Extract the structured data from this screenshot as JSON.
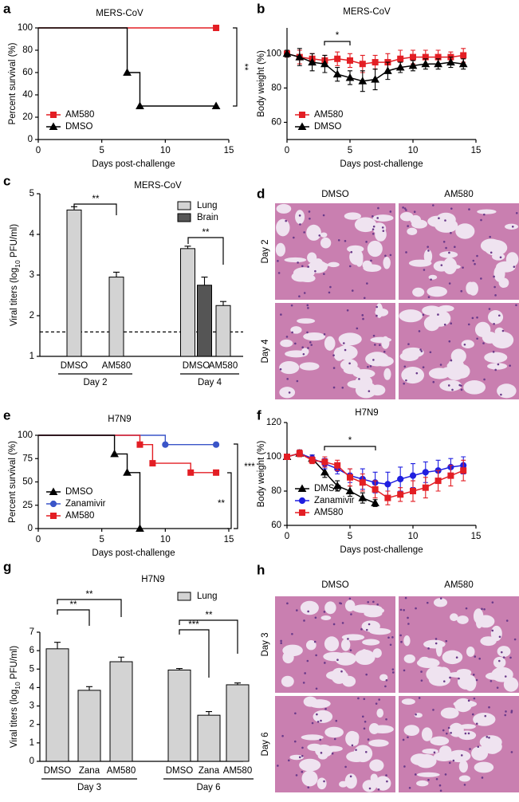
{
  "chart_data": [
    {
      "panel": "a",
      "type": "step",
      "title": "MERS-CoV",
      "xlabel": "Days post-challenge",
      "ylabel": "Percent survival (%)",
      "xlim": [
        0,
        15
      ],
      "ylim": [
        0,
        100
      ],
      "xticks": [
        0,
        5,
        10,
        15
      ],
      "yticks": [
        0,
        20,
        40,
        60,
        80,
        100
      ],
      "legend": "lower left",
      "series": [
        {
          "name": "AM580",
          "color": "#e31e24",
          "marker": "square",
          "x": [
            0,
            14
          ],
          "values": [
            100,
            100
          ]
        },
        {
          "name": "DMSO",
          "color": "#000000",
          "marker": "triangle",
          "x": [
            0,
            7,
            8,
            14
          ],
          "values": [
            100,
            60,
            30,
            30
          ]
        }
      ],
      "annotations": [
        "**"
      ]
    },
    {
      "panel": "b",
      "type": "line",
      "title": "MERS-CoV",
      "xlabel": "Days post-challenge",
      "ylabel": "Body weight (%)",
      "xlim": [
        0,
        15
      ],
      "ylim": [
        50,
        115
      ],
      "xticks": [
        0,
        5,
        10,
        15
      ],
      "yticks": [
        60,
        80,
        100
      ],
      "legend": "lower left",
      "x": [
        0,
        1,
        2,
        3,
        4,
        5,
        6,
        7,
        8,
        9,
        10,
        11,
        12,
        13,
        14
      ],
      "series": [
        {
          "name": "AM580",
          "color": "#e31e24",
          "marker": "square",
          "values": [
            100,
            98,
            97,
            96,
            97,
            96,
            94,
            95,
            95,
            97,
            98,
            98,
            98,
            98,
            99
          ],
          "errors": [
            2,
            4,
            3,
            3,
            4,
            4,
            5,
            4,
            5,
            5,
            4,
            4,
            4,
            3,
            4
          ]
        },
        {
          "name": "DMSO",
          "color": "#000000",
          "marker": "triangle",
          "values": [
            100,
            98,
            95,
            94,
            88,
            86,
            84,
            85,
            90,
            92,
            93,
            94,
            94,
            95,
            94
          ],
          "errors": [
            2,
            5,
            5,
            5,
            4,
            4,
            6,
            6,
            5,
            3,
            3,
            3,
            3,
            3,
            3
          ]
        }
      ],
      "annotations": [
        "*"
      ]
    },
    {
      "panel": "c",
      "type": "bar",
      "title": "MERS-CoV",
      "ylabel": [
        "Viral titers (log",
        "10",
        " PFU/ml)"
      ],
      "ylim": [
        1,
        5
      ],
      "yticks": [
        1,
        2,
        3,
        4,
        5
      ],
      "legend": "upper right",
      "reference_line": 1.6,
      "groups": [
        {
          "name": "Day 2",
          "categories": [
            "DMSO",
            "AM580"
          ]
        },
        {
          "name": "Day 4",
          "categories": [
            "DMSO",
            "AM580"
          ]
        }
      ],
      "series": [
        {
          "name": "Lung",
          "color": "#d3d3d3",
          "values": [
            4.6,
            2.95,
            3.65,
            2.25
          ],
          "errors": [
            0.08,
            0.12,
            0.06,
            0.1
          ]
        },
        {
          "name": "Brain",
          "color": "#555555",
          "values": [
            null,
            null,
            2.75,
            null
          ],
          "errors": [
            null,
            null,
            0.2,
            null
          ]
        }
      ],
      "annotations": [
        "**",
        "**"
      ]
    },
    {
      "panel": "e",
      "type": "step",
      "title": "H7N9",
      "xlabel": "Days post-challenge",
      "ylabel": "Percent survival (%)",
      "xlim": [
        0,
        15
      ],
      "ylim": [
        0,
        100
      ],
      "xticks": [
        0,
        5,
        10,
        15
      ],
      "yticks": [
        0,
        25,
        50,
        75,
        100
      ],
      "legend": "lower left",
      "series": [
        {
          "name": "DMSO",
          "color": "#000000",
          "marker": "triangle",
          "x": [
            0,
            6,
            7,
            8
          ],
          "values": [
            100,
            80,
            60,
            0
          ]
        },
        {
          "name": "Zanamivir",
          "color": "#3a55c8",
          "marker": "circle",
          "x": [
            0,
            10,
            14
          ],
          "values": [
            100,
            90,
            90
          ]
        },
        {
          "name": "AM580",
          "color": "#e31e24",
          "marker": "square",
          "x": [
            0,
            8,
            9,
            12,
            14
          ],
          "values": [
            100,
            90,
            70,
            60,
            60
          ]
        }
      ],
      "annotations": [
        "***",
        "**"
      ]
    },
    {
      "panel": "f",
      "type": "line",
      "title": "H7N9",
      "xlabel": "Days post-challenge",
      "ylabel": "Body weight (%)",
      "xlim": [
        0,
        15
      ],
      "ylim": [
        60,
        120
      ],
      "xticks": [
        0,
        5,
        10,
        15
      ],
      "yticks": [
        60,
        80,
        100,
        120
      ],
      "legend": "lower left",
      "x": [
        0,
        1,
        2,
        3,
        4,
        5,
        6,
        7,
        8,
        9,
        10,
        11,
        12,
        13,
        14
      ],
      "series": [
        {
          "name": "DMSO",
          "color": "#000000",
          "marker": "triangle",
          "values": [
            100,
            102,
            99,
            91,
            83,
            80,
            76,
            73,
            null,
            null,
            null,
            null,
            null,
            null,
            null
          ],
          "errors": [
            1,
            2,
            2,
            3,
            3,
            3,
            3,
            2,
            null,
            null,
            null,
            null,
            null,
            null,
            null
          ]
        },
        {
          "name": "Zanamivir",
          "color": "#1f1fe0",
          "marker": "circle",
          "values": [
            100,
            102,
            99,
            96,
            93,
            89,
            87,
            85,
            84,
            87,
            89,
            91,
            92,
            94,
            95
          ],
          "errors": [
            1,
            2,
            2,
            3,
            3,
            4,
            6,
            6,
            7,
            7,
            7,
            6,
            6,
            5,
            5
          ]
        },
        {
          "name": "AM580",
          "color": "#e31e24",
          "marker": "square",
          "values": [
            100,
            102,
            98,
            97,
            95,
            88,
            85,
            81,
            76,
            78,
            80,
            82,
            86,
            89,
            92
          ],
          "errors": [
            1,
            2,
            2,
            3,
            3,
            5,
            5,
            5,
            4,
            4,
            6,
            6,
            6,
            6,
            6
          ]
        }
      ],
      "annotations": [
        "*"
      ]
    },
    {
      "panel": "g",
      "type": "bar",
      "title": "H7N9",
      "ylabel": [
        "Viral titers (log",
        "10",
        " PFU/ml)"
      ],
      "ylim": [
        0,
        7
      ],
      "yticks": [
        0,
        1,
        2,
        3,
        4,
        5,
        6,
        7
      ],
      "legend": "upper right",
      "groups": [
        {
          "name": "Day 3",
          "categories": [
            "DMSO",
            "Zana",
            "AM580"
          ]
        },
        {
          "name": "Day 6",
          "categories": [
            "DMSO",
            "Zana",
            "AM580"
          ]
        }
      ],
      "series": [
        {
          "name": "Lung",
          "color": "#d3d3d3",
          "values": [
            6.1,
            3.85,
            5.4,
            4.95,
            2.5,
            4.15
          ],
          "errors": [
            0.35,
            0.2,
            0.25,
            0.08,
            0.2,
            0.1
          ]
        }
      ],
      "annotations": [
        "**",
        "**",
        "***",
        "**"
      ]
    }
  ],
  "images": [
    {
      "panel": "d",
      "columns": [
        "DMSO",
        "AM580"
      ],
      "rows": [
        "Day 2",
        "Day 4"
      ]
    },
    {
      "panel": "h",
      "columns": [
        "DMSO",
        "AM580"
      ],
      "rows": [
        "Day 3",
        "Day 6"
      ]
    }
  ]
}
